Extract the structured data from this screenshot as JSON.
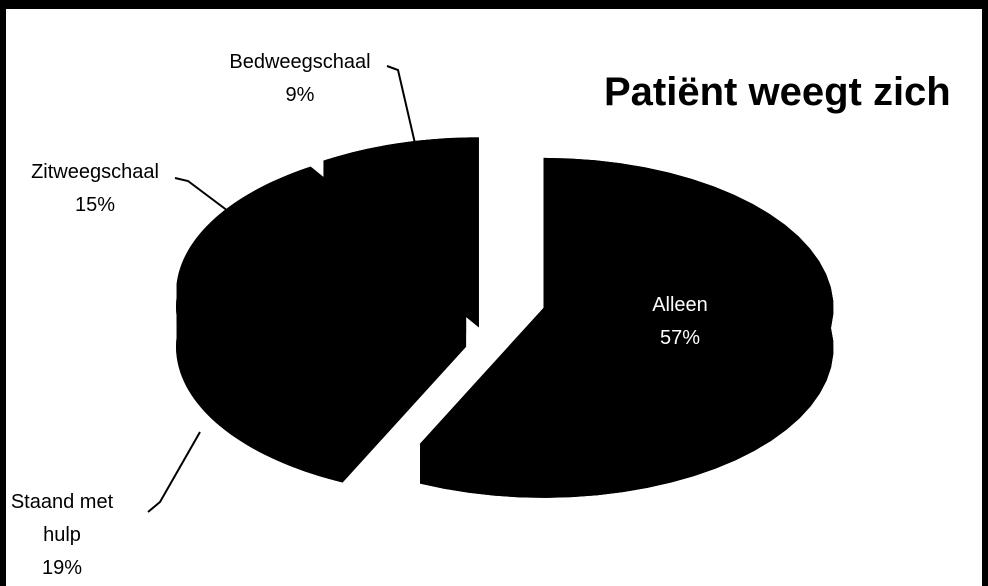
{
  "chart_data": {
    "type": "pie",
    "title": "Patiënt weegt zich",
    "categories": [
      "Alleen",
      "Staand met hulp",
      "Zitweegschaal",
      "Bedweegschaal"
    ],
    "values": [
      57,
      19,
      15,
      9
    ],
    "value_labels": [
      "57%",
      "19%",
      "15%",
      "9%"
    ],
    "color": "#000000"
  }
}
